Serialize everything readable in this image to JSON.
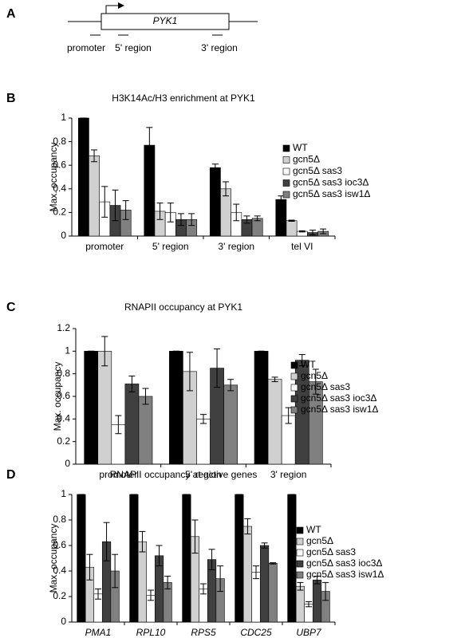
{
  "diagram": {
    "panel": "A",
    "gene": "PYK1",
    "regions": [
      "promoter",
      "5' region",
      "3' region"
    ]
  },
  "chart_data": [
    {
      "type": "bar",
      "panel": "B",
      "title": "H3K14Ac/H3 enrichment at PYK1",
      "ylabel": "Max. occupancy",
      "categories": [
        "promoter",
        "5' region",
        "3' region",
        "tel VI"
      ],
      "ylim": [
        0,
        1
      ],
      "yticks": [
        0,
        0.2,
        0.4,
        0.6,
        0.8,
        1
      ],
      "series": [
        {
          "name": "WT",
          "color": "#000000",
          "values": [
            1,
            0.77,
            0.58,
            0.31
          ],
          "errors": [
            0,
            0.15,
            0.03,
            0.03
          ]
        },
        {
          "name": "gcn5Δ",
          "color": "#d0d0d0",
          "values": [
            0.68,
            0.21,
            0.4,
            0.13
          ],
          "errors": [
            0.05,
            0.07,
            0.06,
            0.005
          ]
        },
        {
          "name": "gcn5Δ sas3",
          "color": "#ffffff",
          "values": [
            0.29,
            0.2,
            0.2,
            0.04
          ],
          "errors": [
            0.13,
            0.08,
            0.07,
            0.005
          ]
        },
        {
          "name": "gcn5Δ sas3 ioc3Δ",
          "color": "#404040",
          "values": [
            0.26,
            0.14,
            0.14,
            0.03
          ],
          "errors": [
            0.13,
            0.05,
            0.03,
            0.02
          ]
        },
        {
          "name": "gcn5Δ sas3 isw1Δ",
          "color": "#808080",
          "values": [
            0.22,
            0.14,
            0.15,
            0.04
          ],
          "errors": [
            0.08,
            0.05,
            0.02,
            0.02
          ]
        }
      ]
    },
    {
      "type": "bar",
      "panel": "C",
      "title": "RNAPII occupancy at PYK1",
      "ylabel": "Max. occupancy",
      "categories": [
        "promoter",
        "5' region",
        "3' region"
      ],
      "ylim": [
        0,
        1.2
      ],
      "yticks": [
        0,
        0.2,
        0.4,
        0.6,
        0.8,
        1,
        1.2
      ],
      "series": [
        {
          "name": "WT",
          "color": "#000000",
          "values": [
            1,
            1,
            1
          ],
          "errors": [
            0,
            0,
            0
          ]
        },
        {
          "name": "gcn5Δ",
          "color": "#d0d0d0",
          "values": [
            1.0,
            0.82,
            0.75
          ],
          "errors": [
            0.13,
            0.17,
            0.02
          ]
        },
        {
          "name": "gcn5Δ sas3",
          "color": "#ffffff",
          "values": [
            0.35,
            0.4,
            0.43
          ],
          "errors": [
            0.08,
            0.04,
            0.07
          ]
        },
        {
          "name": "gcn5Δ sas3 ioc3Δ",
          "color": "#404040",
          "values": [
            0.71,
            0.85,
            0.92
          ],
          "errors": [
            0.07,
            0.17,
            0.05
          ]
        },
        {
          "name": "gcn5Δ sas3 isw1Δ",
          "color": "#808080",
          "values": [
            0.6,
            0.7,
            0.73
          ],
          "errors": [
            0.07,
            0.05,
            0.11
          ]
        }
      ]
    },
    {
      "type": "bar",
      "panel": "D",
      "title": "RNAPII occupancy at active genes",
      "ylabel": "Max. occupancy",
      "categories": [
        "PMA1",
        "RPL10",
        "RPS5",
        "CDC25",
        "UBP7"
      ],
      "ylim": [
        0,
        1
      ],
      "yticks": [
        0,
        0.2,
        0.4,
        0.6,
        0.8,
        1
      ],
      "series": [
        {
          "name": "WT",
          "color": "#000000",
          "values": [
            1,
            1,
            1,
            1,
            1
          ],
          "errors": [
            0,
            0,
            0,
            0,
            0
          ]
        },
        {
          "name": "gcn5Δ",
          "color": "#d0d0d0",
          "values": [
            0.43,
            0.63,
            0.67,
            0.75,
            0.28
          ],
          "errors": [
            0.1,
            0.08,
            0.13,
            0.06,
            0.03
          ]
        },
        {
          "name": "gcn5Δ sas3",
          "color": "#ffffff",
          "values": [
            0.22,
            0.21,
            0.26,
            0.39,
            0.14
          ],
          "errors": [
            0.04,
            0.04,
            0.04,
            0.05,
            0.02
          ]
        },
        {
          "name": "gcn5Δ sas3 ioc3Δ",
          "color": "#404040",
          "values": [
            0.63,
            0.52,
            0.49,
            0.6,
            0.33
          ],
          "errors": [
            0.15,
            0.08,
            0.08,
            0.02,
            0.03
          ]
        },
        {
          "name": "gcn5Δ sas3 isw1Δ",
          "color": "#808080",
          "values": [
            0.4,
            0.31,
            0.34,
            0.46,
            0.24
          ],
          "errors": [
            0.13,
            0.05,
            0.1,
            0.005,
            0.07
          ]
        }
      ]
    }
  ]
}
